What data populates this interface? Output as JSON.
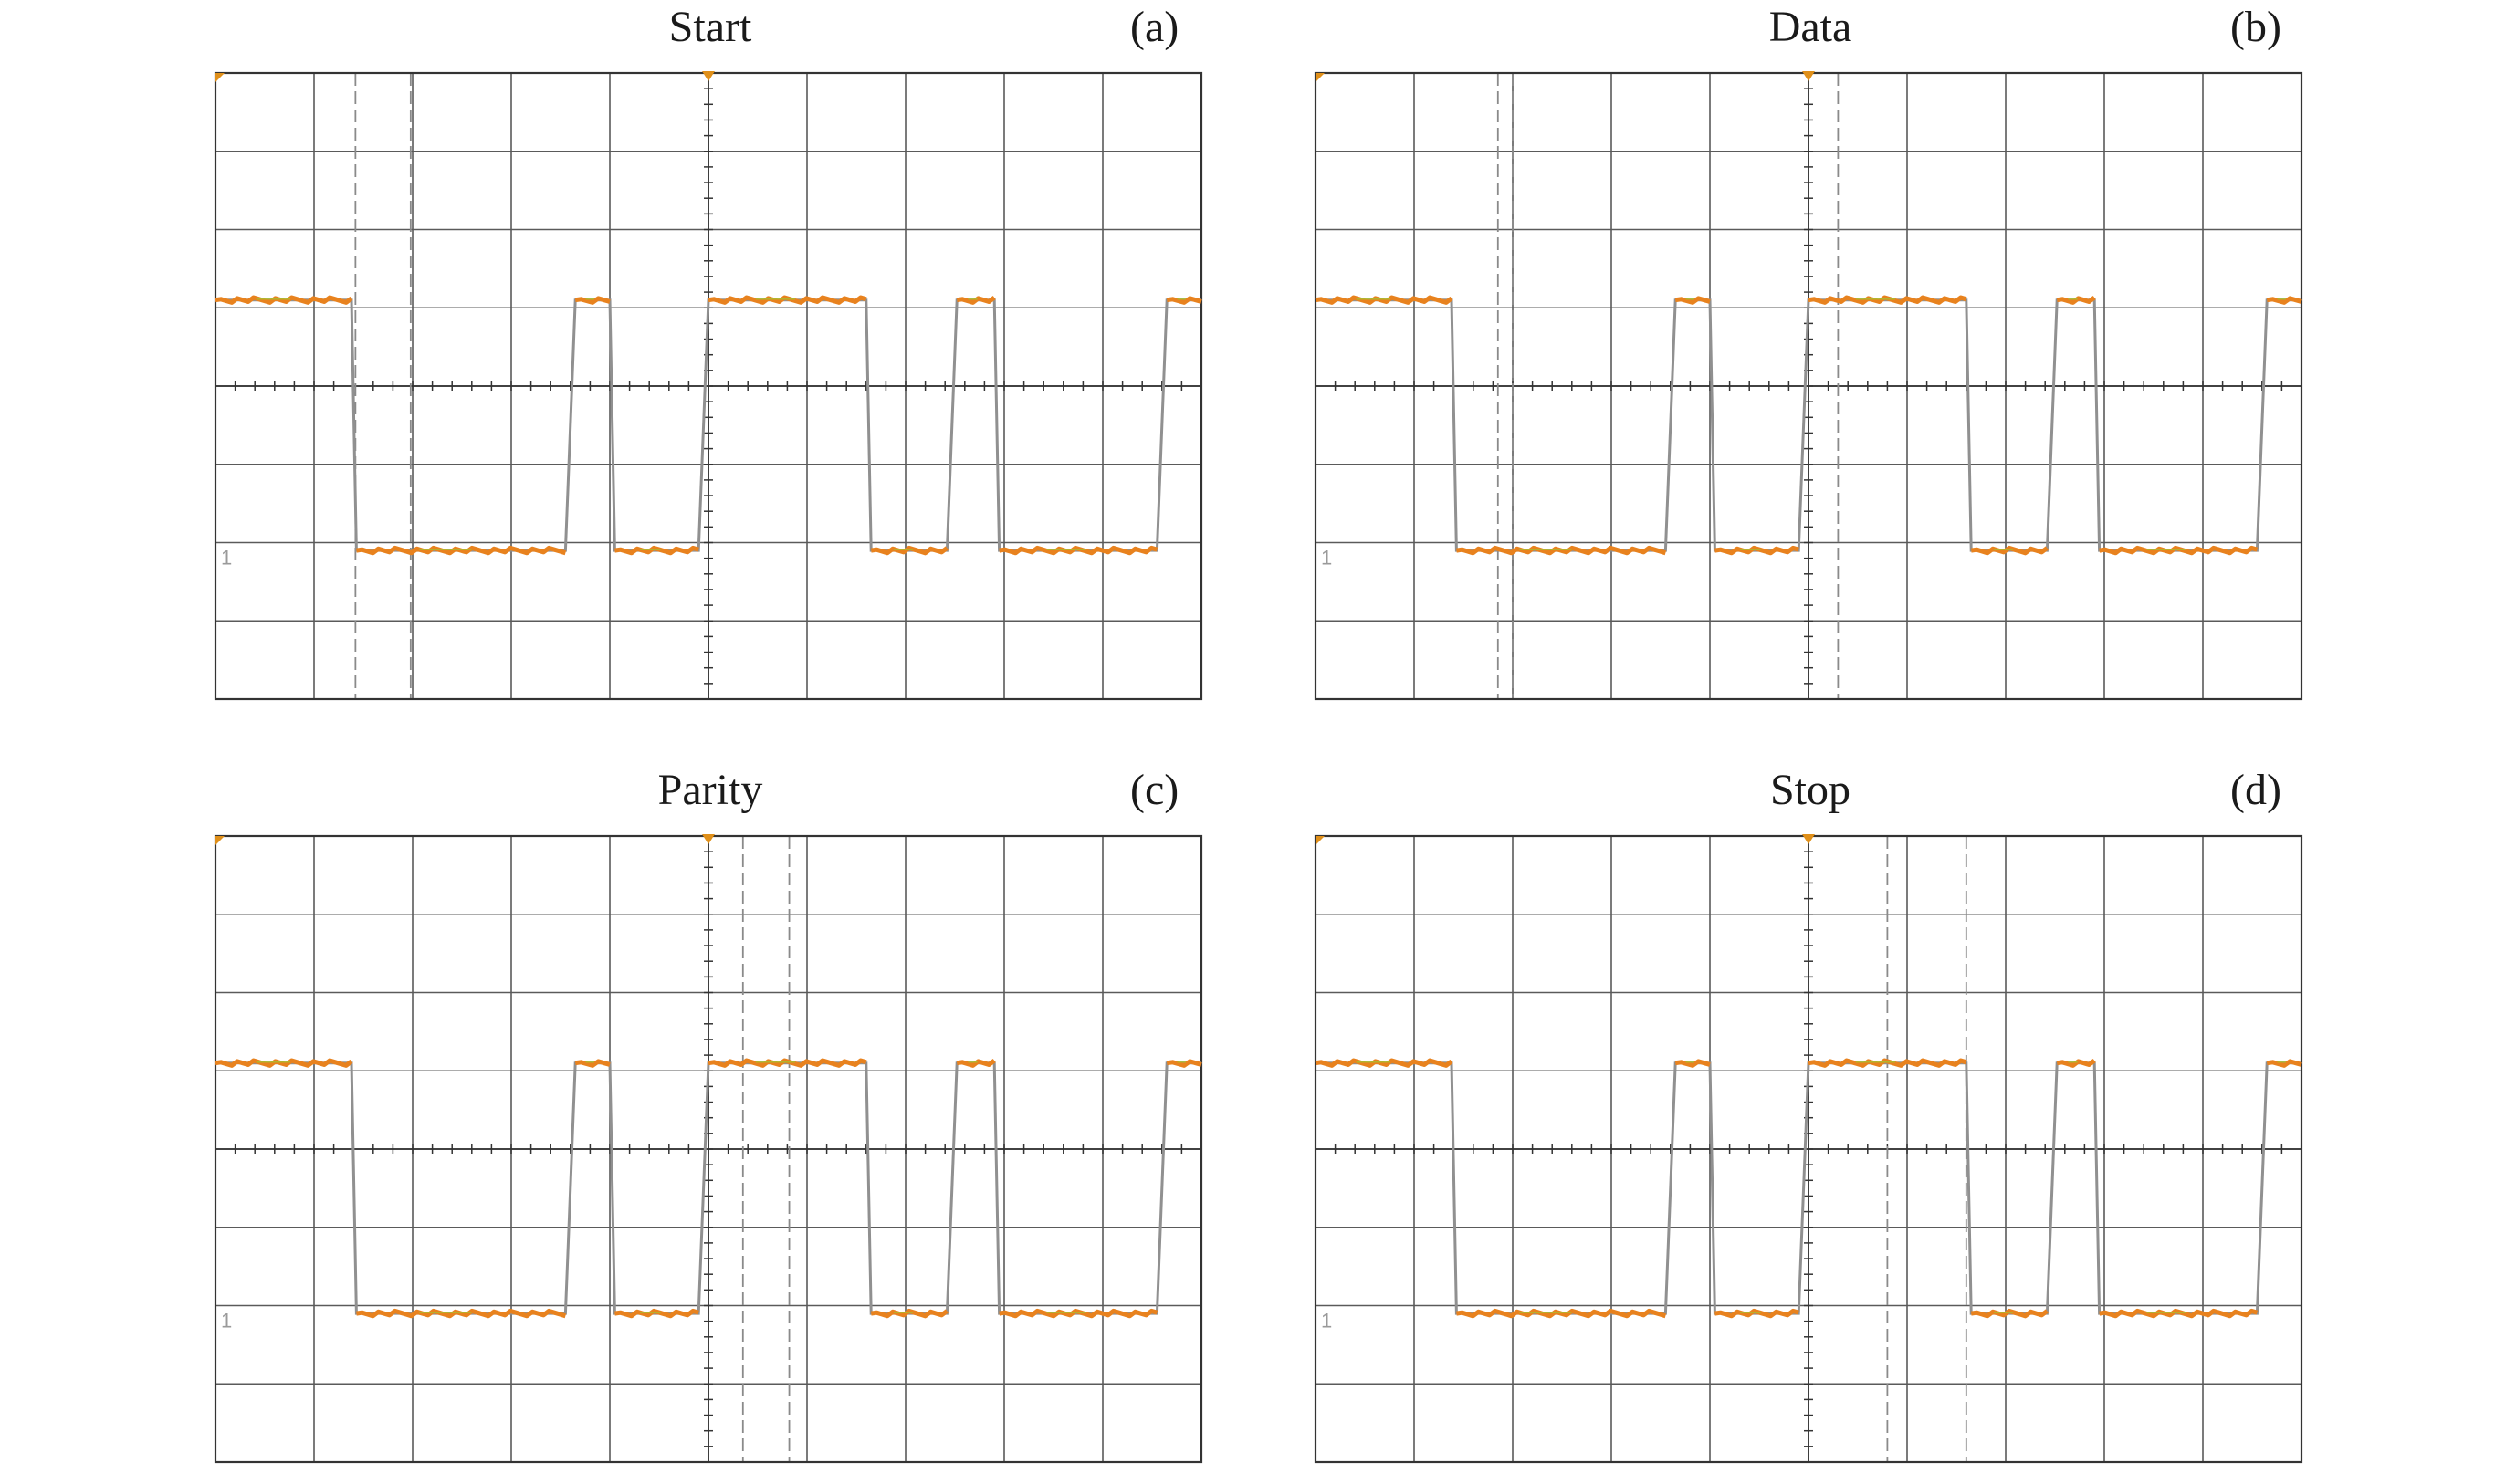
{
  "colors": {
    "grid": "#5a5a5a",
    "frame": "#333333",
    "trace": "#e8821e",
    "trace_highlight": "#a8c030",
    "edge": "#909090",
    "cursor": "#8a8a8a",
    "trigger": "#e0901a"
  },
  "chart_data": [
    {
      "type": "line",
      "title": "Start",
      "panel_label": "(a)",
      "channel_marker": "1",
      "grid": true,
      "xlim": [
        0,
        10
      ],
      "ylim": [
        0,
        8
      ],
      "cursors_x": [
        1.42,
        1.98
      ],
      "series": [
        {
          "x": [
            0,
            1.38,
            1.43,
            3.55,
            3.65,
            4.0,
            4.05,
            4.9,
            5.0,
            6.6,
            6.65,
            7.42,
            7.52,
            7.9,
            7.95,
            9.55,
            9.65,
            10
          ],
          "y": [
            5.1,
            5.1,
            1.9,
            1.9,
            5.1,
            5.1,
            1.9,
            1.9,
            5.1,
            5.1,
            1.9,
            1.9,
            5.1,
            5.1,
            1.9,
            1.9,
            5.1,
            5.1
          ]
        }
      ]
    },
    {
      "type": "line",
      "title": "Data",
      "panel_label": "(b)",
      "channel_marker": "1",
      "grid": true,
      "xlim": [
        0,
        10
      ],
      "ylim": [
        0,
        8
      ],
      "cursors_x": [
        1.85,
        2.0,
        5.3
      ],
      "series": [
        {
          "x": [
            0,
            1.38,
            1.43,
            3.55,
            3.65,
            4.0,
            4.05,
            4.9,
            5.0,
            6.6,
            6.65,
            7.42,
            7.52,
            7.9,
            7.95,
            9.55,
            9.65,
            10
          ],
          "y": [
            5.1,
            5.1,
            1.9,
            1.9,
            5.1,
            5.1,
            1.9,
            1.9,
            5.1,
            5.1,
            1.9,
            1.9,
            5.1,
            5.1,
            1.9,
            1.9,
            5.1,
            5.1
          ]
        }
      ]
    },
    {
      "type": "line",
      "title": "Parity",
      "panel_label": "(c)",
      "channel_marker": "1",
      "grid": true,
      "xlim": [
        0,
        10
      ],
      "ylim": [
        0,
        8
      ],
      "cursors_x": [
        5.35,
        5.82
      ],
      "series": [
        {
          "x": [
            0,
            1.38,
            1.43,
            3.55,
            3.65,
            4.0,
            4.05,
            4.9,
            5.0,
            6.6,
            6.65,
            7.42,
            7.52,
            7.9,
            7.95,
            9.55,
            9.65,
            10
          ],
          "y": [
            5.1,
            5.1,
            1.9,
            1.9,
            5.1,
            5.1,
            1.9,
            1.9,
            5.1,
            5.1,
            1.9,
            1.9,
            5.1,
            5.1,
            1.9,
            1.9,
            5.1,
            5.1
          ]
        }
      ]
    },
    {
      "type": "line",
      "title": "Stop",
      "panel_label": "(d)",
      "channel_marker": "1",
      "grid": true,
      "xlim": [
        0,
        10
      ],
      "ylim": [
        0,
        8
      ],
      "cursors_x": [
        5.8,
        6.6
      ],
      "series": [
        {
          "x": [
            0,
            1.38,
            1.43,
            3.55,
            3.65,
            4.0,
            4.05,
            4.9,
            5.0,
            6.6,
            6.65,
            7.42,
            7.52,
            7.9,
            7.95,
            9.55,
            9.65,
            10
          ],
          "y": [
            5.1,
            5.1,
            1.9,
            1.9,
            5.1,
            5.1,
            1.9,
            1.9,
            5.1,
            5.1,
            1.9,
            1.9,
            5.1,
            5.1,
            1.9,
            1.9,
            5.1,
            5.1
          ]
        }
      ]
    }
  ]
}
